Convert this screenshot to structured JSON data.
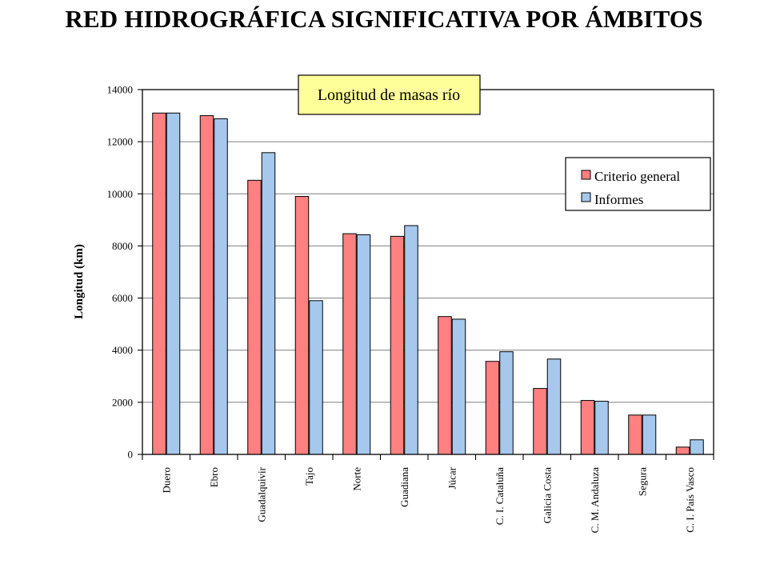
{
  "page": {
    "title": "RED HIDROGRÁFICA SIGNIFICATIVA POR ÁMBITOS"
  },
  "colors": {
    "criterio": "#ff8080",
    "informes": "#a6c8ec",
    "plot_bg": "#ffffff",
    "gridline": "#8c8c8c",
    "title_box_bg": "#ffff99"
  },
  "chart_data": {
    "type": "bar",
    "title": "Longitud de masas río",
    "xlabel": "",
    "ylabel": "Longitud (km)",
    "ylim": [
      0,
      14000
    ],
    "yticks": [
      "0",
      "2000",
      "4000",
      "6000",
      "8000",
      "10000",
      "12000",
      "14000"
    ],
    "grid": true,
    "legend_position": "top-right",
    "categories": [
      "Duero",
      "Ebro",
      "Guadalquivir",
      "Tajo",
      "Norte",
      "Guadiana",
      "Júcar",
      "C. I. Cataluña",
      "Galicia Costa",
      "C. M. Andaluza",
      "Segura",
      "C. I. País Vasco"
    ],
    "series": [
      {
        "name": "Criterio general",
        "values": [
          13100,
          13000,
          10520,
          9900,
          8470,
          8370,
          5290,
          3570,
          2530,
          2070,
          1510,
          280
        ]
      },
      {
        "name": "Informes",
        "values": [
          13100,
          12880,
          11580,
          5900,
          8430,
          8780,
          5190,
          3940,
          3660,
          2040,
          1510,
          560
        ]
      }
    ]
  }
}
